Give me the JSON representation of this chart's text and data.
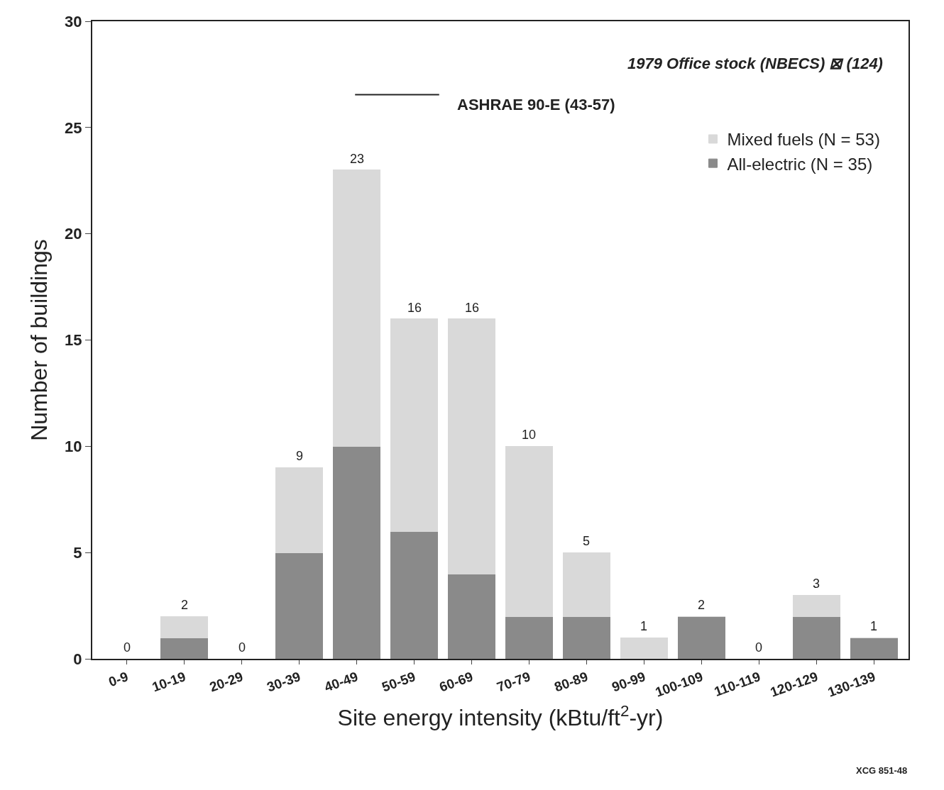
{
  "chart_data": {
    "type": "bar",
    "stacked": true,
    "xlabel": "Site energy intensity (kBtu/ft$^{2}$-yr)",
    "ylabel": "Number of buildings",
    "categories": [
      "0-9",
      "10-19",
      "20-29",
      "30-39",
      "40-49",
      "50-59",
      "60-69",
      "70-79",
      "80-89",
      "90-99",
      "100-109",
      "110-119",
      "120-129",
      "130-139"
    ],
    "series": [
      {
        "name": "All-electric (N = 35)",
        "color": "#8a8a8a",
        "values": [
          0,
          1,
          0,
          5,
          10,
          6,
          4,
          2,
          2,
          0,
          2,
          0,
          2,
          1
        ]
      },
      {
        "name": "Mixed fuels (N = 53)",
        "color": "#d9d9d9",
        "values": [
          0,
          1,
          0,
          4,
          13,
          10,
          12,
          8,
          3,
          1,
          0,
          0,
          1,
          0
        ]
      }
    ],
    "totals": [
      "0",
      "2",
      "0",
      "9",
      "23",
      "16",
      "16",
      "10",
      "5",
      "1",
      "2",
      "0",
      "3",
      "1"
    ],
    "ylim": [
      0,
      30
    ],
    "yticks": [
      0,
      5,
      10,
      15,
      20,
      25,
      30
    ],
    "grid": false,
    "legend": "top right",
    "annotations": [
      "1979 Office stock (NBECS) ⊠ (124)",
      "ASHRAE 90-E (43-57)",
      "XCG 851-48"
    ]
  }
}
